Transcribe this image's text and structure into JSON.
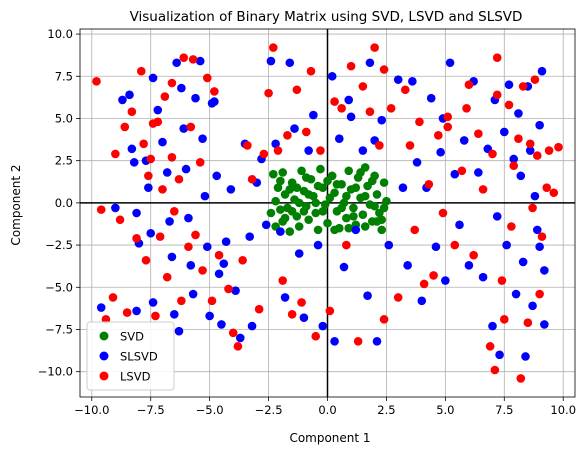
{
  "chart_data": {
    "type": "scatter",
    "title": "Visualization of Binary Matrix using SVD, LSVD and SLSVD",
    "xlabel": "Component 1",
    "ylabel": "Component 2",
    "xlim": [
      -10.5,
      10.5
    ],
    "ylim": [
      -11.5,
      10.3
    ],
    "xticks": [
      -10.0,
      -7.5,
      -5.0,
      -2.5,
      0.0,
      2.5,
      5.0,
      7.5,
      10.0
    ],
    "yticks": [
      -10.0,
      -7.5,
      -5.0,
      -2.5,
      0.0,
      2.5,
      5.0,
      7.5,
      10.0
    ],
    "xtick_labels": [
      "−10.0",
      "−7.5",
      "−5.0",
      "−2.5",
      "0.0",
      "2.5",
      "5.0",
      "7.5",
      "10.0"
    ],
    "ytick_labels": [
      "−10.0",
      "−7.5",
      "−5.0",
      "−2.5",
      "0.0",
      "2.5",
      "5.0",
      "7.5",
      "10.0"
    ],
    "grid": true,
    "legend_position": "lower-left",
    "series": [
      {
        "name": "SVD",
        "color": "#008000",
        "points": [
          [
            -2.3,
            1.7
          ],
          [
            -2.1,
            0.9
          ],
          [
            -2.2,
            0.1
          ],
          [
            -2.4,
            -0.6
          ],
          [
            -2.2,
            -1.4
          ],
          [
            -1.9,
            1.8
          ],
          [
            -1.8,
            0.5
          ],
          [
            -1.7,
            -0.3
          ],
          [
            -1.9,
            -1.1
          ],
          [
            -1.6,
            -1.7
          ],
          [
            -1.5,
            1.2
          ],
          [
            -1.4,
            0.2
          ],
          [
            -1.3,
            -0.8
          ],
          [
            -1.2,
            -1.4
          ],
          [
            -1.1,
            1.9
          ],
          [
            -1.0,
            0.7
          ],
          [
            -0.9,
            -0.2
          ],
          [
            -0.8,
            -1.0
          ],
          [
            -0.7,
            1.4
          ],
          [
            -0.6,
            0.4
          ],
          [
            -0.5,
            -0.6
          ],
          [
            -0.4,
            -1.6
          ],
          [
            -0.3,
            2.0
          ],
          [
            -0.2,
            0.9
          ],
          [
            -0.1,
            -0.1
          ],
          [
            0.0,
            -1.2
          ],
          [
            0.2,
            1.6
          ],
          [
            0.3,
            0.6
          ],
          [
            0.4,
            -0.5
          ],
          [
            0.5,
            -1.5
          ],
          [
            0.6,
            1.1
          ],
          [
            0.7,
            0.0
          ],
          [
            0.8,
            -0.9
          ],
          [
            0.9,
            1.9
          ],
          [
            1.0,
            0.8
          ],
          [
            1.1,
            -0.3
          ],
          [
            1.2,
            -1.3
          ],
          [
            1.3,
            1.5
          ],
          [
            1.4,
            0.3
          ],
          [
            1.5,
            -0.7
          ],
          [
            1.6,
            2.1
          ],
          [
            1.7,
            1.0
          ],
          [
            1.8,
            -0.1
          ],
          [
            1.9,
            -1.1
          ],
          [
            2.0,
            1.6
          ],
          [
            2.1,
            0.5
          ],
          [
            2.2,
            -0.6
          ],
          [
            2.3,
            -1.6
          ],
          [
            2.4,
            1.2
          ],
          [
            2.5,
            0.1
          ],
          [
            2.3,
            -1.0
          ],
          [
            -2.0,
            1.3
          ],
          [
            -1.6,
            0.8
          ],
          [
            -1.2,
            0.0
          ],
          [
            -0.8,
            0.5
          ],
          [
            -0.4,
            1.0
          ],
          [
            0.0,
            1.3
          ],
          [
            0.4,
            1.1
          ],
          [
            0.8,
            0.4
          ],
          [
            1.2,
            0.9
          ],
          [
            1.6,
            0.4
          ],
          [
            2.0,
            -0.2
          ],
          [
            -2.0,
            -0.4
          ],
          [
            -1.5,
            -0.5
          ],
          [
            -1.0,
            -0.5
          ],
          [
            -0.5,
            0.0
          ],
          [
            0.1,
            0.3
          ],
          [
            0.6,
            -0.3
          ],
          [
            1.1,
            -0.8
          ],
          [
            1.6,
            -1.4
          ],
          [
            2.1,
            -1.1
          ],
          [
            -1.8,
            -0.9
          ],
          [
            -1.3,
            0.9
          ],
          [
            -0.9,
            1.5
          ],
          [
            -0.2,
            -0.5
          ],
          [
            0.3,
            -1.6
          ],
          [
            0.9,
            -1.5
          ],
          [
            1.4,
            1.8
          ],
          [
            1.9,
            1.3
          ],
          [
            2.4,
            -0.3
          ]
        ]
      },
      {
        "name": "SLSVD",
        "color": "#0000ff",
        "points": [
          [
            -9.6,
            -6.2
          ],
          [
            -8.7,
            6.1
          ],
          [
            -8.4,
            6.4
          ],
          [
            -8.3,
            3.2
          ],
          [
            -8.2,
            2.4
          ],
          [
            -8.1,
            -0.6
          ],
          [
            -8.0,
            -2.4
          ],
          [
            -8.1,
            -6.4
          ],
          [
            -7.7,
            2.5
          ],
          [
            -7.6,
            0.9
          ],
          [
            -7.5,
            -1.8
          ],
          [
            -7.4,
            -5.9
          ],
          [
            -7.4,
            7.4
          ],
          [
            -7.2,
            5.5
          ],
          [
            -7.0,
            3.6
          ],
          [
            -6.8,
            1.8
          ],
          [
            -6.7,
            -1.1
          ],
          [
            -6.6,
            -3.2
          ],
          [
            -6.5,
            -6.6
          ],
          [
            -6.4,
            8.3
          ],
          [
            -6.2,
            6.8
          ],
          [
            -6.1,
            4.4
          ],
          [
            -6.0,
            2.0
          ],
          [
            -5.9,
            -0.9
          ],
          [
            -5.8,
            -3.7
          ],
          [
            -5.7,
            -5.4
          ],
          [
            -5.6,
            6.2
          ],
          [
            -5.4,
            8.4
          ],
          [
            -5.3,
            3.8
          ],
          [
            -5.2,
            0.4
          ],
          [
            -5.1,
            -2.6
          ],
          [
            -5.0,
            -6.7
          ],
          [
            -4.9,
            5.9
          ],
          [
            -4.8,
            6.0
          ],
          [
            -4.7,
            1.6
          ],
          [
            -4.6,
            -4.2
          ],
          [
            -4.5,
            -7.2
          ],
          [
            -4.3,
            -2.3
          ],
          [
            -4.1,
            0.8
          ],
          [
            -3.9,
            -5.2
          ],
          [
            -3.7,
            -8.0
          ],
          [
            -3.5,
            3.5
          ],
          [
            -3.3,
            -2.0
          ],
          [
            -3.2,
            -7.3
          ],
          [
            -2.8,
            2.6
          ],
          [
            -2.6,
            -1.3
          ],
          [
            -2.4,
            8.4
          ],
          [
            -2.2,
            3.5
          ],
          [
            -2.0,
            -1.7
          ],
          [
            -1.8,
            -5.6
          ],
          [
            -1.6,
            8.3
          ],
          [
            -1.4,
            4.4
          ],
          [
            -1.2,
            -3.0
          ],
          [
            -1.0,
            -6.8
          ],
          [
            -0.8,
            3.1
          ],
          [
            -0.6,
            5.2
          ],
          [
            -0.4,
            -2.5
          ],
          [
            -0.2,
            -7.3
          ],
          [
            0.2,
            7.5
          ],
          [
            0.3,
            -8.2
          ],
          [
            0.5,
            3.8
          ],
          [
            0.7,
            -3.8
          ],
          [
            1.0,
            5.1
          ],
          [
            1.2,
            -1.6
          ],
          [
            1.5,
            3.1
          ],
          [
            1.7,
            -5.5
          ],
          [
            1.8,
            8.3
          ],
          [
            2.0,
            3.7
          ],
          [
            2.1,
            -8.2
          ],
          [
            2.3,
            4.9
          ],
          [
            2.6,
            -2.5
          ],
          [
            3.0,
            7.3
          ],
          [
            3.2,
            0.9
          ],
          [
            3.4,
            -3.7
          ],
          [
            3.6,
            7.2
          ],
          [
            3.8,
            2.4
          ],
          [
            4.0,
            -5.8
          ],
          [
            4.2,
            0.9
          ],
          [
            4.4,
            6.2
          ],
          [
            4.6,
            -2.6
          ],
          [
            4.8,
            3.0
          ],
          [
            5.0,
            -4.6
          ],
          [
            5.2,
            8.3
          ],
          [
            5.4,
            1.7
          ],
          [
            5.6,
            -1.3
          ],
          [
            5.8,
            3.7
          ],
          [
            6.0,
            -3.7
          ],
          [
            6.2,
            7.2
          ],
          [
            6.4,
            1.8
          ],
          [
            6.6,
            -4.4
          ],
          [
            6.8,
            3.2
          ],
          [
            7.0,
            -7.3
          ],
          [
            7.1,
            6.1
          ],
          [
            7.2,
            -0.8
          ],
          [
            7.3,
            -9.0
          ],
          [
            7.5,
            4.2
          ],
          [
            7.6,
            -2.5
          ],
          [
            7.7,
            7.0
          ],
          [
            7.9,
            2.6
          ],
          [
            8.0,
            -5.4
          ],
          [
            8.1,
            5.3
          ],
          [
            8.2,
            1.6
          ],
          [
            8.3,
            -3.5
          ],
          [
            8.4,
            -9.1
          ],
          [
            8.5,
            6.9
          ],
          [
            8.6,
            3.1
          ],
          [
            8.7,
            -6.1
          ],
          [
            8.8,
            0.4
          ],
          [
            8.9,
            -1.6
          ],
          [
            9.0,
            4.6
          ],
          [
            9.1,
            7.8
          ],
          [
            9.2,
            -4.0
          ],
          [
            9.2,
            -7.2
          ],
          [
            9.0,
            -2.6
          ],
          [
            -9.0,
            -0.3
          ],
          [
            -6.3,
            -7.6
          ],
          [
            -4.4,
            -3.6
          ],
          [
            -3.0,
            1.2
          ],
          [
            0.9,
            6.1
          ],
          [
            4.9,
            5.0
          ]
        ]
      },
      {
        "name": "LSVD",
        "color": "#ff0000",
        "points": [
          [
            -9.8,
            7.2
          ],
          [
            -9.6,
            -0.4
          ],
          [
            -9.4,
            -6.9
          ],
          [
            -9.1,
            -5.6
          ],
          [
            -9.0,
            2.9
          ],
          [
            -8.8,
            -1.0
          ],
          [
            -8.6,
            4.5
          ],
          [
            -8.5,
            -6.5
          ],
          [
            -8.3,
            5.4
          ],
          [
            -8.1,
            -2.1
          ],
          [
            -7.9,
            7.8
          ],
          [
            -7.8,
            3.5
          ],
          [
            -7.7,
            -3.4
          ],
          [
            -7.6,
            1.6
          ],
          [
            -7.5,
            2.6
          ],
          [
            -7.3,
            -6.7
          ],
          [
            -7.2,
            4.8
          ],
          [
            -7.1,
            -2.0
          ],
          [
            -7.0,
            0.8
          ],
          [
            -6.9,
            6.3
          ],
          [
            -6.8,
            -4.4
          ],
          [
            -6.6,
            7.1
          ],
          [
            -6.5,
            -0.5
          ],
          [
            -6.3,
            1.4
          ],
          [
            -6.2,
            -5.8
          ],
          [
            -6.1,
            8.6
          ],
          [
            -5.9,
            -2.6
          ],
          [
            -5.8,
            4.5
          ],
          [
            -5.7,
            8.5
          ],
          [
            -5.6,
            -1.9
          ],
          [
            -5.4,
            2.4
          ],
          [
            -5.3,
            -4.0
          ],
          [
            -5.1,
            7.4
          ],
          [
            -4.9,
            -5.8
          ],
          [
            -4.8,
            6.6
          ],
          [
            -4.6,
            -3.1
          ],
          [
            -4.2,
            -5.1
          ],
          [
            -3.8,
            -8.5
          ],
          [
            -3.6,
            -3.4
          ],
          [
            -3.4,
            3.4
          ],
          [
            -3.2,
            1.4
          ],
          [
            -2.9,
            -6.3
          ],
          [
            -2.7,
            2.9
          ],
          [
            -2.5,
            6.5
          ],
          [
            -2.3,
            9.2
          ],
          [
            -2.1,
            3.1
          ],
          [
            -1.9,
            -4.6
          ],
          [
            -1.7,
            4.0
          ],
          [
            -1.5,
            -6.6
          ],
          [
            -1.3,
            6.7
          ],
          [
            -1.1,
            -5.9
          ],
          [
            -0.9,
            4.2
          ],
          [
            -0.7,
            7.8
          ],
          [
            -0.5,
            -7.9
          ],
          [
            -0.3,
            3.1
          ],
          [
            0.1,
            -6.4
          ],
          [
            0.3,
            6.0
          ],
          [
            0.6,
            5.6
          ],
          [
            0.8,
            -2.5
          ],
          [
            1.0,
            8.1
          ],
          [
            1.3,
            -8.2
          ],
          [
            1.5,
            6.9
          ],
          [
            1.8,
            5.4
          ],
          [
            2.0,
            9.2
          ],
          [
            2.2,
            3.4
          ],
          [
            2.4,
            -6.9
          ],
          [
            2.7,
            5.6
          ],
          [
            3.0,
            -5.6
          ],
          [
            3.3,
            6.7
          ],
          [
            3.5,
            3.4
          ],
          [
            3.7,
            -1.6
          ],
          [
            3.9,
            4.8
          ],
          [
            4.1,
            -4.8
          ],
          [
            4.3,
            1.1
          ],
          [
            4.5,
            -4.3
          ],
          [
            4.7,
            4.0
          ],
          [
            4.9,
            -0.6
          ],
          [
            5.1,
            4.5
          ],
          [
            5.4,
            -2.5
          ],
          [
            5.7,
            1.9
          ],
          [
            5.9,
            5.6
          ],
          [
            6.0,
            7.0
          ],
          [
            6.2,
            -3.1
          ],
          [
            6.4,
            4.1
          ],
          [
            6.6,
            0.8
          ],
          [
            6.9,
            -8.5
          ],
          [
            7.0,
            2.9
          ],
          [
            7.1,
            -9.9
          ],
          [
            7.2,
            8.6
          ],
          [
            7.4,
            -4.6
          ],
          [
            7.5,
            -6.9
          ],
          [
            7.7,
            5.8
          ],
          [
            7.8,
            -1.4
          ],
          [
            7.9,
            2.2
          ],
          [
            8.1,
            3.8
          ],
          [
            8.2,
            -10.4
          ],
          [
            8.3,
            6.9
          ],
          [
            8.5,
            -7.1
          ],
          [
            8.6,
            3.5
          ],
          [
            8.7,
            -0.3
          ],
          [
            8.8,
            7.3
          ],
          [
            8.9,
            2.8
          ],
          [
            9.0,
            -5.4
          ],
          [
            9.1,
            -2.0
          ],
          [
            9.3,
            0.9
          ],
          [
            9.4,
            3.1
          ],
          [
            9.6,
            0.6
          ],
          [
            9.8,
            3.3
          ],
          [
            -7.4,
            4.7
          ],
          [
            -6.6,
            2.7
          ],
          [
            -4.0,
            -7.7
          ],
          [
            2.4,
            7.9
          ],
          [
            5.1,
            5.1
          ],
          [
            7.2,
            6.4
          ]
        ]
      }
    ]
  }
}
